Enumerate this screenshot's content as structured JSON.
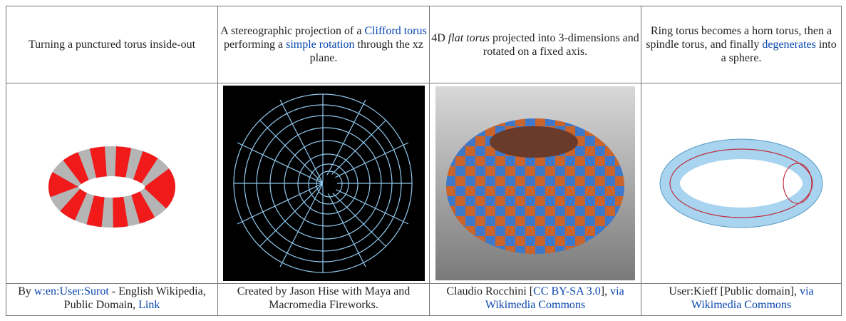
{
  "table": {
    "rows": [
      [
        [
          "Turning a punctured torus inside-out"
        ],
        [
          "A stereographic projection of a ",
          "Clifford torus",
          " performing a ",
          "simple rotation",
          " through the xz plane."
        ],
        [
          "4D ",
          "flat torus",
          " projected into 3-dimensions and rotated on a fixed axis."
        ],
        [
          "Ring torus becomes a horn torus, then a spindle torus, and finally ",
          "degenerates",
          " into a sphere."
        ]
      ],
      [
        [
          "By ",
          "w:en:User:Surot",
          " - English Wikipedia, Public Domain, ",
          "Link"
        ],
        [
          "Created by Jason Hise with Maya and Macromedia Fireworks."
        ],
        [
          "Claudio Rocchini [",
          "CC BY-SA 3.0",
          "], ",
          "via Wikimedia Commons"
        ],
        [
          "User:Kieff [Public domain], ",
          "via Wikimedia Commons"
        ]
      ]
    ]
  }
}
